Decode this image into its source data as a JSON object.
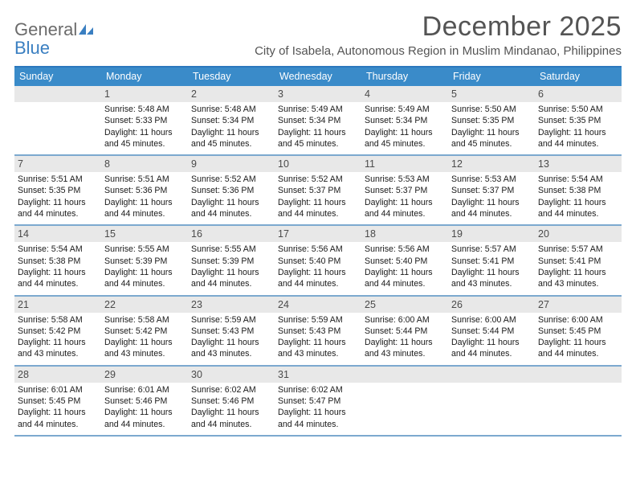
{
  "logo": {
    "word1": "General",
    "word2": "Blue"
  },
  "title": "December 2025",
  "location": "City of Isabela, Autonomous Region in Muslim Mindanao, Philippines",
  "colors": {
    "header_bar": "#3a8bc9",
    "header_border": "#2b78bd",
    "week_border": "#7ca9cf",
    "daynum_bg": "#e8e8e8",
    "text_dark": "#1a1a1a",
    "text_gray": "#545454",
    "logo_gray": "#6b6b6b",
    "logo_blue": "#3a7fc1",
    "background": "#ffffff"
  },
  "weekdays": [
    "Sunday",
    "Monday",
    "Tuesday",
    "Wednesday",
    "Thursday",
    "Friday",
    "Saturday"
  ],
  "weeks": [
    [
      {
        "n": "",
        "sr": "",
        "ss": "",
        "dl": ""
      },
      {
        "n": "1",
        "sr": "Sunrise: 5:48 AM",
        "ss": "Sunset: 5:33 PM",
        "dl": "Daylight: 11 hours and 45 minutes."
      },
      {
        "n": "2",
        "sr": "Sunrise: 5:48 AM",
        "ss": "Sunset: 5:34 PM",
        "dl": "Daylight: 11 hours and 45 minutes."
      },
      {
        "n": "3",
        "sr": "Sunrise: 5:49 AM",
        "ss": "Sunset: 5:34 PM",
        "dl": "Daylight: 11 hours and 45 minutes."
      },
      {
        "n": "4",
        "sr": "Sunrise: 5:49 AM",
        "ss": "Sunset: 5:34 PM",
        "dl": "Daylight: 11 hours and 45 minutes."
      },
      {
        "n": "5",
        "sr": "Sunrise: 5:50 AM",
        "ss": "Sunset: 5:35 PM",
        "dl": "Daylight: 11 hours and 45 minutes."
      },
      {
        "n": "6",
        "sr": "Sunrise: 5:50 AM",
        "ss": "Sunset: 5:35 PM",
        "dl": "Daylight: 11 hours and 44 minutes."
      }
    ],
    [
      {
        "n": "7",
        "sr": "Sunrise: 5:51 AM",
        "ss": "Sunset: 5:35 PM",
        "dl": "Daylight: 11 hours and 44 minutes."
      },
      {
        "n": "8",
        "sr": "Sunrise: 5:51 AM",
        "ss": "Sunset: 5:36 PM",
        "dl": "Daylight: 11 hours and 44 minutes."
      },
      {
        "n": "9",
        "sr": "Sunrise: 5:52 AM",
        "ss": "Sunset: 5:36 PM",
        "dl": "Daylight: 11 hours and 44 minutes."
      },
      {
        "n": "10",
        "sr": "Sunrise: 5:52 AM",
        "ss": "Sunset: 5:37 PM",
        "dl": "Daylight: 11 hours and 44 minutes."
      },
      {
        "n": "11",
        "sr": "Sunrise: 5:53 AM",
        "ss": "Sunset: 5:37 PM",
        "dl": "Daylight: 11 hours and 44 minutes."
      },
      {
        "n": "12",
        "sr": "Sunrise: 5:53 AM",
        "ss": "Sunset: 5:37 PM",
        "dl": "Daylight: 11 hours and 44 minutes."
      },
      {
        "n": "13",
        "sr": "Sunrise: 5:54 AM",
        "ss": "Sunset: 5:38 PM",
        "dl": "Daylight: 11 hours and 44 minutes."
      }
    ],
    [
      {
        "n": "14",
        "sr": "Sunrise: 5:54 AM",
        "ss": "Sunset: 5:38 PM",
        "dl": "Daylight: 11 hours and 44 minutes."
      },
      {
        "n": "15",
        "sr": "Sunrise: 5:55 AM",
        "ss": "Sunset: 5:39 PM",
        "dl": "Daylight: 11 hours and 44 minutes."
      },
      {
        "n": "16",
        "sr": "Sunrise: 5:55 AM",
        "ss": "Sunset: 5:39 PM",
        "dl": "Daylight: 11 hours and 44 minutes."
      },
      {
        "n": "17",
        "sr": "Sunrise: 5:56 AM",
        "ss": "Sunset: 5:40 PM",
        "dl": "Daylight: 11 hours and 44 minutes."
      },
      {
        "n": "18",
        "sr": "Sunrise: 5:56 AM",
        "ss": "Sunset: 5:40 PM",
        "dl": "Daylight: 11 hours and 44 minutes."
      },
      {
        "n": "19",
        "sr": "Sunrise: 5:57 AM",
        "ss": "Sunset: 5:41 PM",
        "dl": "Daylight: 11 hours and 43 minutes."
      },
      {
        "n": "20",
        "sr": "Sunrise: 5:57 AM",
        "ss": "Sunset: 5:41 PM",
        "dl": "Daylight: 11 hours and 43 minutes."
      }
    ],
    [
      {
        "n": "21",
        "sr": "Sunrise: 5:58 AM",
        "ss": "Sunset: 5:42 PM",
        "dl": "Daylight: 11 hours and 43 minutes."
      },
      {
        "n": "22",
        "sr": "Sunrise: 5:58 AM",
        "ss": "Sunset: 5:42 PM",
        "dl": "Daylight: 11 hours and 43 minutes."
      },
      {
        "n": "23",
        "sr": "Sunrise: 5:59 AM",
        "ss": "Sunset: 5:43 PM",
        "dl": "Daylight: 11 hours and 43 minutes."
      },
      {
        "n": "24",
        "sr": "Sunrise: 5:59 AM",
        "ss": "Sunset: 5:43 PM",
        "dl": "Daylight: 11 hours and 43 minutes."
      },
      {
        "n": "25",
        "sr": "Sunrise: 6:00 AM",
        "ss": "Sunset: 5:44 PM",
        "dl": "Daylight: 11 hours and 43 minutes."
      },
      {
        "n": "26",
        "sr": "Sunrise: 6:00 AM",
        "ss": "Sunset: 5:44 PM",
        "dl": "Daylight: 11 hours and 44 minutes."
      },
      {
        "n": "27",
        "sr": "Sunrise: 6:00 AM",
        "ss": "Sunset: 5:45 PM",
        "dl": "Daylight: 11 hours and 44 minutes."
      }
    ],
    [
      {
        "n": "28",
        "sr": "Sunrise: 6:01 AM",
        "ss": "Sunset: 5:45 PM",
        "dl": "Daylight: 11 hours and 44 minutes."
      },
      {
        "n": "29",
        "sr": "Sunrise: 6:01 AM",
        "ss": "Sunset: 5:46 PM",
        "dl": "Daylight: 11 hours and 44 minutes."
      },
      {
        "n": "30",
        "sr": "Sunrise: 6:02 AM",
        "ss": "Sunset: 5:46 PM",
        "dl": "Daylight: 11 hours and 44 minutes."
      },
      {
        "n": "31",
        "sr": "Sunrise: 6:02 AM",
        "ss": "Sunset: 5:47 PM",
        "dl": "Daylight: 11 hours and 44 minutes."
      },
      {
        "n": "",
        "sr": "",
        "ss": "",
        "dl": ""
      },
      {
        "n": "",
        "sr": "",
        "ss": "",
        "dl": ""
      },
      {
        "n": "",
        "sr": "",
        "ss": "",
        "dl": ""
      }
    ]
  ]
}
